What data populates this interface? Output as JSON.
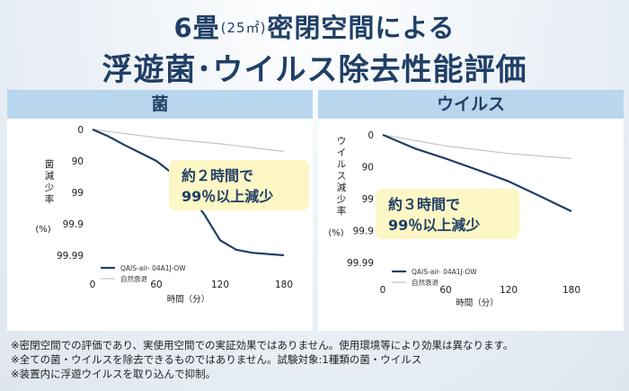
{
  "header": {
    "title_line1_a": "6畳",
    "title_line1_b": "(25㎡)",
    "title_line1_c": "密閉空間による",
    "title_line2": "浮遊菌･ウイルス除去性能評価"
  },
  "chart_data": [
    {
      "type": "line",
      "title": "菌",
      "xlabel": "時間（分）",
      "ylabel": "菌減少率",
      "yunit": "(%)",
      "x_ticks": [
        "0",
        "60",
        "120",
        "180"
      ],
      "y_ticks": [
        "0",
        "90",
        "99",
        "99.9",
        "99.99"
      ],
      "xlim": [
        0,
        180
      ],
      "ylim_reduction_percent": [
        0,
        99.99
      ],
      "series": [
        {
          "name": "QAIS-air- 04A1J-OW",
          "color": "#1f3f66",
          "x": [
            0,
            15,
            30,
            45,
            60,
            75,
            90,
            105,
            120,
            135,
            150,
            165,
            180
          ],
          "y": [
            0,
            40,
            68,
            82,
            90,
            96,
            99,
            99.8,
            99.97,
            99.985,
            99.988,
            99.989,
            99.99
          ]
        },
        {
          "name": "自然衰退",
          "color": "#c4c4c4",
          "x": [
            0,
            60,
            120,
            180
          ],
          "y": [
            0,
            45,
            65,
            80
          ]
        }
      ],
      "legend_position": "bottom-left",
      "annotation": {
        "line1": "約２時間で",
        "line2": "99％以上減少"
      }
    },
    {
      "type": "line",
      "title": "ウイルス",
      "xlabel": "時間（分）",
      "ylabel": "ウイルス減少率",
      "yunit": "(%)",
      "x_ticks": [
        "0",
        "60",
        "120",
        "180"
      ],
      "y_ticks": [
        "0",
        "90",
        "99",
        "99.9",
        "99.99"
      ],
      "xlim": [
        0,
        180
      ],
      "ylim_reduction_percent": [
        0,
        99.99
      ],
      "series": [
        {
          "name": "QAIS-air- 04A1J-OW",
          "color": "#1f3f66",
          "x": [
            0,
            30,
            60,
            90,
            120,
            150,
            180
          ],
          "y": [
            0,
            62,
            82,
            92,
            96.5,
            98.8,
            99.6
          ]
        },
        {
          "name": "自然衰退",
          "color": "#c4c4c4",
          "x": [
            0,
            60,
            120,
            180
          ],
          "y": [
            0,
            55,
            74,
            82
          ]
        }
      ],
      "legend_position": "bottom-left",
      "annotation": {
        "line1": "約３時間で",
        "line2": "99％以上減少"
      }
    }
  ],
  "footnotes": [
    "※密閉空間での評価であり、実使用空間での実証効果ではありません。使用環境等により効果は異なります。",
    "※全ての菌・ウイルスを除去できるものではありません。試験対象:1種類の菌・ウイルス",
    "※装置内に浮遊ウイルスを取り込んで抑制。"
  ]
}
